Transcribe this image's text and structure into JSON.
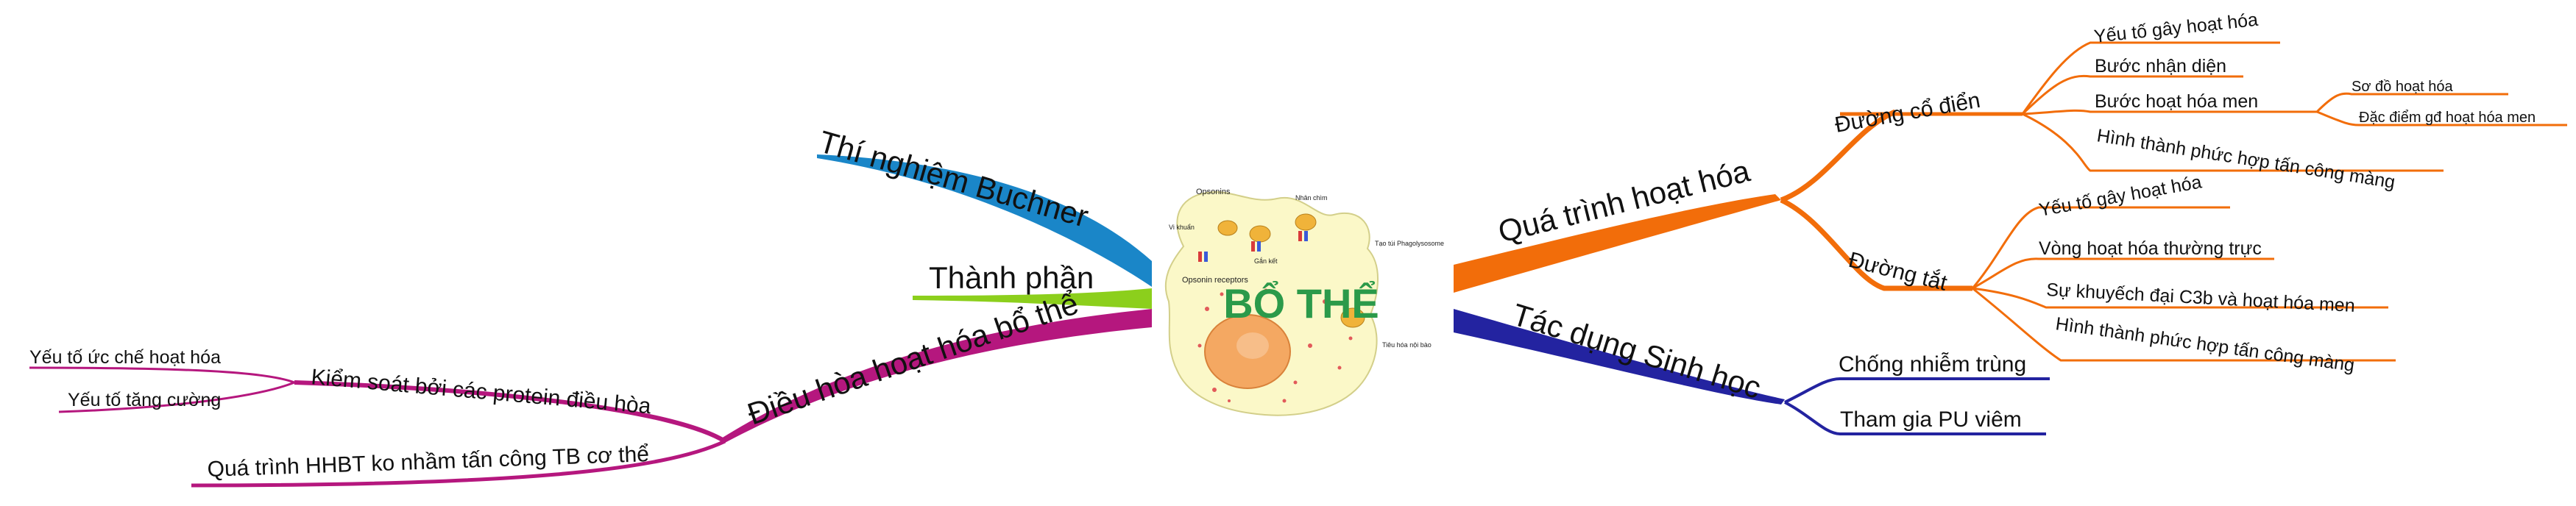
{
  "center": {
    "title": "BỔ THỂ"
  },
  "illustration": {
    "labels": {
      "opsonins": "Opsonins",
      "vi_khuan": "Vi khuẩn",
      "nhan_chim": "Nhân chìm",
      "gan_ket": "Gắn kết",
      "tao_tui": "Tạo túi Phagolysosome",
      "opsonin_receptors": "Opsonin receptors",
      "tieu_hoa": "Tiêu hóa nội bào"
    }
  },
  "branches": {
    "buchner": {
      "label": "Thí nghiệm Buchner",
      "color": "#1a86c8"
    },
    "thanh_phan": {
      "label": "Thành phần",
      "color": "#8ccf1c"
    },
    "dieu_hoa": {
      "label": "Điều hòa hoạt hóa bổ thể",
      "color": "#b5177e",
      "kiem_soat": {
        "label": "Kiểm soát bởi các protein điều hòa",
        "items": [
          "Yếu tố ức chế hoạt hóa",
          "Yếu tố tăng cường"
        ]
      },
      "qua_trinh": {
        "label": "Quá trình HHBT ko nhầm tấn công TB cơ thể"
      }
    },
    "hoat_hoa": {
      "label": "Quá trình hoạt hóa",
      "color": "#f26d0a",
      "co_dien": {
        "label": "Đường cổ điển",
        "items": [
          "Yếu tố gây hoạt hóa",
          "Bước nhận diện",
          "Bước hoạt hóa men",
          "Hình thành phức hợp tấn công màng"
        ],
        "men_items": [
          "Sơ đồ hoạt hóa",
          "Đặc điểm gđ hoạt hóa men"
        ]
      },
      "duong_tat": {
        "label": "Đường tắt",
        "items": [
          "Yếu tố gây hoạt hóa",
          "Vòng hoạt hóa thường trực",
          "Sự khuyếch đại C3b và hoạt hóa men",
          "Hình thành phức hợp tấn công màng"
        ]
      }
    },
    "tac_dung": {
      "label": "Tác dụng Sinh học",
      "color": "#2323a0",
      "items": [
        "Chống nhiễm trùng",
        "Tham gia PU viêm"
      ]
    }
  }
}
